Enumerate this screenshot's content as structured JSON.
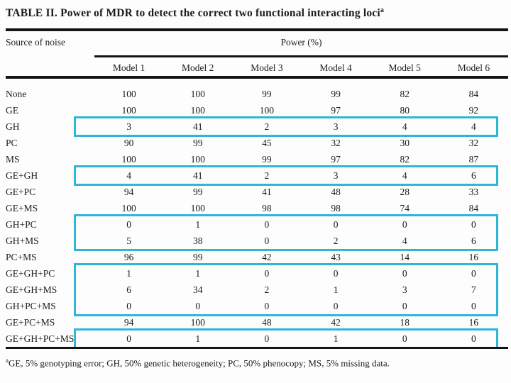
{
  "title": {
    "text": "TABLE II. Power of MDR to detect the correct two functional interacting loci",
    "superscript": "a"
  },
  "table": {
    "row_group_header": "Source of noise",
    "col_group_header": "Power (%)",
    "columns": [
      "Model 1",
      "Model 2",
      "Model 3",
      "Model 4",
      "Model 5",
      "Model 6"
    ],
    "rows": [
      {
        "label": "None",
        "values": [
          100,
          100,
          99,
          99,
          82,
          84
        ],
        "highlighted": false
      },
      {
        "label": "GE",
        "values": [
          100,
          100,
          100,
          97,
          80,
          92
        ],
        "highlighted": false
      },
      {
        "label": "GH",
        "values": [
          3,
          41,
          2,
          3,
          4,
          4
        ],
        "highlighted": true
      },
      {
        "label": "PC",
        "values": [
          90,
          99,
          45,
          32,
          30,
          32
        ],
        "highlighted": false
      },
      {
        "label": "MS",
        "values": [
          100,
          100,
          99,
          97,
          82,
          87
        ],
        "highlighted": false
      },
      {
        "label": "GE+GH",
        "values": [
          4,
          41,
          2,
          3,
          4,
          6
        ],
        "highlighted": true
      },
      {
        "label": "GE+PC",
        "values": [
          94,
          99,
          41,
          48,
          28,
          33
        ],
        "highlighted": false
      },
      {
        "label": "GE+MS",
        "values": [
          100,
          100,
          98,
          98,
          74,
          84
        ],
        "highlighted": false
      },
      {
        "label": "GH+PC",
        "values": [
          0,
          1,
          0,
          0,
          0,
          0
        ],
        "highlighted": true
      },
      {
        "label": "GH+MS",
        "values": [
          5,
          38,
          0,
          2,
          4,
          6
        ],
        "highlighted": true
      },
      {
        "label": "PC+MS",
        "values": [
          96,
          99,
          42,
          43,
          14,
          16
        ],
        "highlighted": false
      },
      {
        "label": "GE+GH+PC",
        "values": [
          1,
          1,
          0,
          0,
          0,
          0
        ],
        "highlighted": true
      },
      {
        "label": "GE+GH+MS",
        "values": [
          6,
          34,
          2,
          1,
          3,
          7
        ],
        "highlighted": true
      },
      {
        "label": "GH+PC+MS",
        "values": [
          0,
          0,
          0,
          0,
          0,
          0
        ],
        "highlighted": true
      },
      {
        "label": "GE+PC+MS",
        "values": [
          94,
          100,
          48,
          42,
          18,
          16
        ],
        "highlighted": false
      },
      {
        "label": "GE+GH+PC+MS",
        "values": [
          0,
          1,
          0,
          1,
          0,
          0
        ],
        "highlighted": true
      }
    ],
    "highlight_groups": [
      [
        2,
        2
      ],
      [
        5,
        5
      ],
      [
        8,
        9
      ],
      [
        11,
        13
      ],
      [
        15,
        15
      ]
    ],
    "highlight_color": "#2eb6d8"
  },
  "footnote": {
    "superscript": "a",
    "text": "GE, 5% genotyping error; GH, 50% genetic heterogeneity; PC, 50% phenocopy; MS, 5% missing data."
  }
}
